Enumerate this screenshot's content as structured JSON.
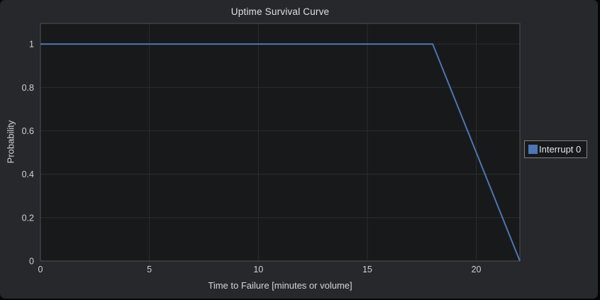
{
  "colors": {
    "paper_bg": "#26282b",
    "plot_bg": "#18191b",
    "grid": "#2a2c2e",
    "axis_line": "#4e5155",
    "tick_text": "#cdd0d2",
    "title_text": "#dfe0e2",
    "legend_bg": "#18191b",
    "legend_border": "#7f8286",
    "series_blue": "#4d76b4"
  },
  "chart_data": {
    "type": "line",
    "title": "Uptime Survival Curve",
    "xlabel": "Time to Failure [minutes or volume]",
    "ylabel": "Probability",
    "xlim": [
      0,
      22
    ],
    "ylim": [
      0,
      1.095
    ],
    "x_ticks": [
      0,
      5,
      10,
      15,
      20
    ],
    "y_ticks": [
      0,
      0.2,
      0.4,
      0.6,
      0.8,
      1
    ],
    "grid": true,
    "legend_position": "outside-right",
    "series": [
      {
        "name": "Interrupt 0",
        "color": "#4d76b4",
        "x": [
          0,
          18,
          22
        ],
        "y": [
          1,
          1,
          0
        ]
      }
    ]
  }
}
